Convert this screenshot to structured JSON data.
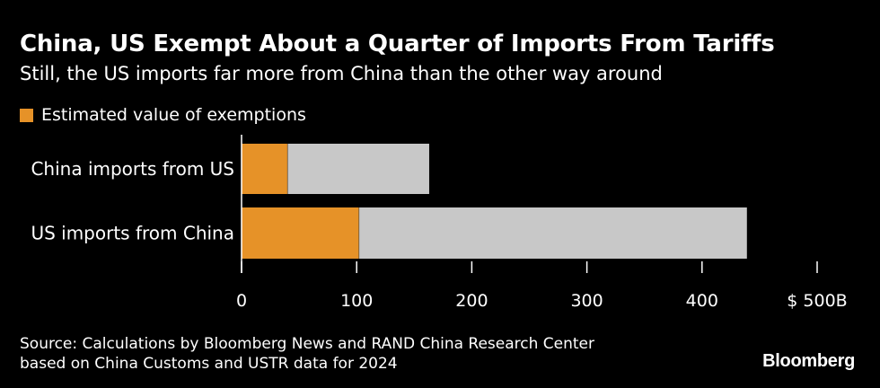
{
  "chart_data": {
    "type": "bar",
    "orientation": "horizontal",
    "stacked": true,
    "title": "China, US Exempt About a Quarter of Imports From Tariffs",
    "subtitle": "Still, the US imports far more from China than the other way around",
    "categories": [
      "China imports from US",
      "US imports from China"
    ],
    "series": [
      {
        "name": "Estimated value of exemptions",
        "values": [
          40,
          102
        ],
        "color": "#e69228"
      },
      {
        "values": [
          123,
          337
        ],
        "color": "#c8c8c8"
      }
    ],
    "totals": [
      163,
      439
    ],
    "xlim": [
      0,
      500
    ],
    "xticks": [
      0,
      100,
      200,
      300,
      400,
      500
    ],
    "xtick_labels": [
      "0",
      "100",
      "200",
      "300",
      "400",
      "$ 500B"
    ],
    "legend_position": "top-left",
    "grid": false
  },
  "footer": {
    "source_line1": "Source: Calculations by Bloomberg News and RAND China Research Center",
    "source_line2": "based on China Customs and USTR data for 2024",
    "brand": "Bloomberg"
  },
  "colors": {
    "background": "#000000",
    "text": "#ffffff",
    "exemption": "#e69228",
    "total": "#c8c8c8"
  }
}
